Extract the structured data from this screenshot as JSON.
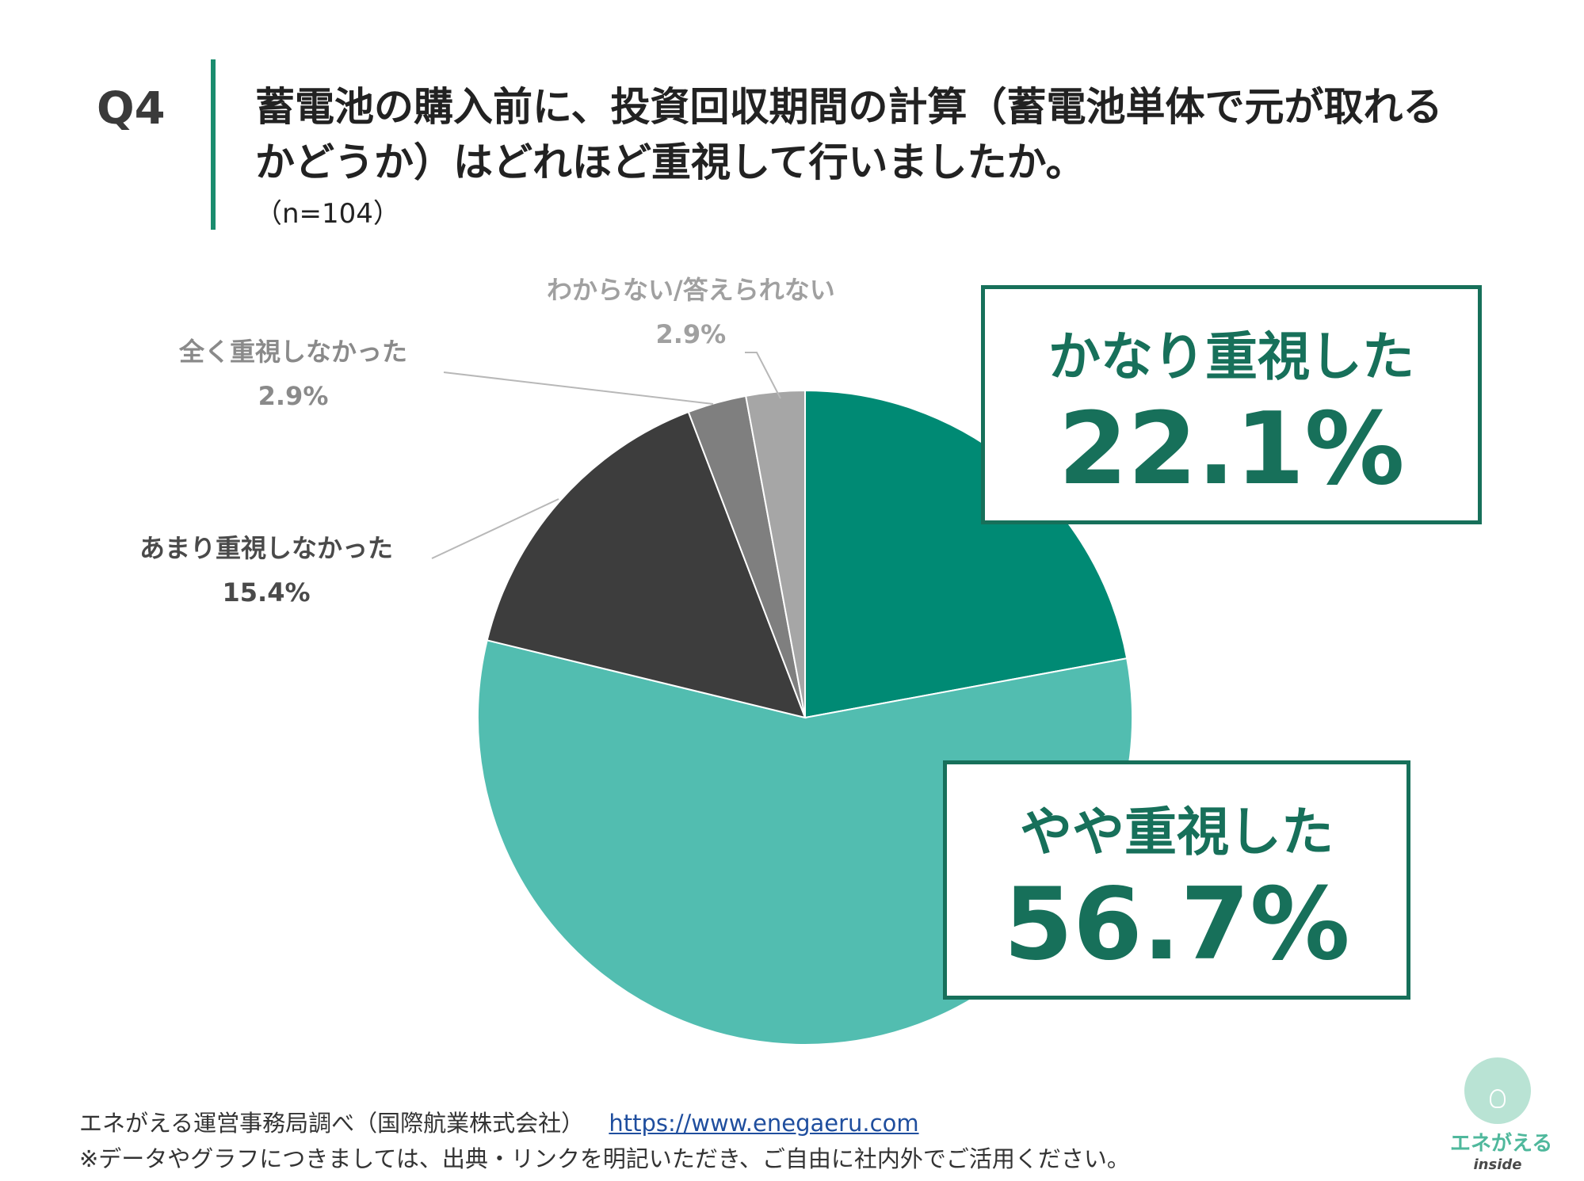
{
  "question": {
    "number": "Q4",
    "line1": "蓄電池の購入前に、投資回収期間の計算（蓄電池単体で元が取れる",
    "line2": "かどうか）はどれほど重視して行いましたか。",
    "sample": "（n=104）"
  },
  "chart_data": {
    "type": "pie",
    "categories": [
      "かなり重視した",
      "やや重視した",
      "あまり重視しなかった",
      "全く重視しなかった",
      "わからない/答えられない"
    ],
    "values": [
      22.1,
      56.7,
      15.4,
      2.9,
      2.9
    ],
    "value_labels": [
      "22.1%",
      "56.7%",
      "15.4%",
      "2.9%",
      "2.9%"
    ],
    "colors": [
      "#008a74",
      "#52bdb0",
      "#3d3d3d",
      "#7f7f7f",
      "#a6a6a6"
    ],
    "start": "12 o'clock",
    "direction": "clockwise"
  },
  "callouts": {
    "top": {
      "name": "かなり重視した",
      "value": "22.1%"
    },
    "bottom": {
      "name": "やや重視した",
      "value": "56.7%"
    }
  },
  "labels": {
    "amari": {
      "name": "あまり重視しなかった",
      "value": "15.4%"
    },
    "mattaku": {
      "name": "全く重視しなかった",
      "value": "2.9%"
    },
    "wakaranai": {
      "name": "わからない/答えられない",
      "value": "2.9%"
    }
  },
  "footer": {
    "source": "エネがえる運営事務局調べ（国際航業株式会社）",
    "link": "https://www.enegaeru.com",
    "note": "※データやグラフにつきましては、出典・リンクを明記いただき、ご自由に社内外でご活用ください。"
  },
  "logo": {
    "name": "エネがえる",
    "sub": "inside"
  }
}
